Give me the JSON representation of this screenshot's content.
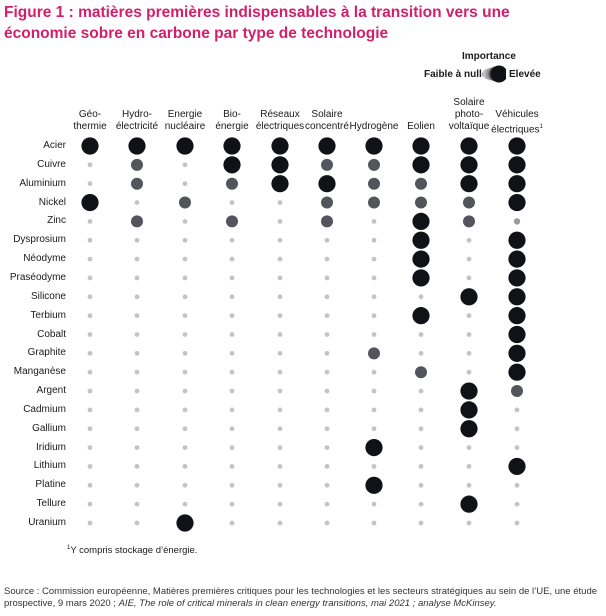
{
  "title": "Figure 1 : matières premières indispensables à la transition vers une économie sobre en carbone par type de technologie",
  "legend": {
    "title": "Importance",
    "low": "Faible à nulle",
    "high": "Elevée"
  },
  "footnote": {
    "mark": "1",
    "text": "Y compris stockage d’énergie."
  },
  "source": {
    "text": "Source : Commission européenne, Matières premières critiques pour les technologies et les secteurs stratégiques au sein de l’UE, une étude prospective, 9 mars 2020 ; ",
    "italic": "AIE, The role of critical minerals in clean energy transitions, mai 2021 ; analyse McKinsey."
  },
  "chart_data": {
    "type": "bubble-matrix",
    "scale": "0 = faible à nulle, 1 = faible, 2 = moyenne, 3 = élevée",
    "colors": {
      "0": "#c4c4c4",
      "1": "#9a9a9a",
      "2": "#54545c",
      "3": "#111118"
    },
    "columns": [
      {
        "label": "Géo-\nthermie",
        "sup": ""
      },
      {
        "label": "Hydro-\nélectricité",
        "sup": ""
      },
      {
        "label": "Energie\nnucléaire",
        "sup": ""
      },
      {
        "label": "Bio-\nénergie",
        "sup": ""
      },
      {
        "label": "Réseaux\nélectriques",
        "sup": ""
      },
      {
        "label": "Solaire\nconcentré",
        "sup": ""
      },
      {
        "label": "Hydrogène",
        "sup": ""
      },
      {
        "label": "Eolien",
        "sup": ""
      },
      {
        "label": "Solaire\nphoto-\nvoltaïque",
        "sup": ""
      },
      {
        "label": "Véhicules\nélectriques",
        "sup": "1"
      }
    ],
    "rows": [
      {
        "label": "Acier",
        "values": [
          3,
          3,
          3,
          3,
          3,
          3,
          3,
          3,
          3,
          3
        ]
      },
      {
        "label": "Cuivre",
        "values": [
          0,
          2,
          0,
          3,
          3,
          2,
          2,
          3,
          3,
          3
        ]
      },
      {
        "label": "Aluminium",
        "values": [
          0,
          2,
          0,
          2,
          3,
          3,
          2,
          2,
          3,
          3
        ]
      },
      {
        "label": "Nickel",
        "values": [
          3,
          0,
          2,
          0,
          0,
          2,
          2,
          2,
          2,
          3
        ]
      },
      {
        "label": "Zinc",
        "values": [
          0,
          2,
          0,
          2,
          0,
          2,
          0,
          3,
          2,
          1
        ]
      },
      {
        "label": "Dysprosium",
        "values": [
          0,
          0,
          0,
          0,
          0,
          0,
          0,
          3,
          0,
          3
        ]
      },
      {
        "label": "Néodyme",
        "values": [
          0,
          0,
          0,
          0,
          0,
          0,
          0,
          3,
          0,
          3
        ]
      },
      {
        "label": "Praséodyme",
        "values": [
          0,
          0,
          0,
          0,
          0,
          0,
          0,
          3,
          0,
          3
        ]
      },
      {
        "label": "Silicone",
        "values": [
          0,
          0,
          0,
          0,
          0,
          0,
          0,
          0,
          3,
          3
        ]
      },
      {
        "label": "Terbium",
        "values": [
          0,
          0,
          0,
          0,
          0,
          0,
          0,
          3,
          0,
          3
        ]
      },
      {
        "label": "Cobalt",
        "values": [
          0,
          0,
          0,
          0,
          0,
          0,
          0,
          0,
          0,
          3
        ]
      },
      {
        "label": "Graphite",
        "values": [
          0,
          0,
          0,
          0,
          0,
          0,
          2,
          0,
          0,
          3
        ]
      },
      {
        "label": "Manganèse",
        "values": [
          0,
          0,
          0,
          0,
          0,
          0,
          0,
          2,
          0,
          3
        ]
      },
      {
        "label": "Argent",
        "values": [
          0,
          0,
          0,
          0,
          0,
          0,
          0,
          0,
          3,
          2
        ]
      },
      {
        "label": "Cadmium",
        "values": [
          0,
          0,
          0,
          0,
          0,
          0,
          0,
          0,
          3,
          0
        ]
      },
      {
        "label": "Gallium",
        "values": [
          0,
          0,
          0,
          0,
          0,
          0,
          0,
          0,
          3,
          0
        ]
      },
      {
        "label": "Iridium",
        "values": [
          0,
          0,
          0,
          0,
          0,
          0,
          3,
          0,
          0,
          0
        ]
      },
      {
        "label": "Lithium",
        "values": [
          0,
          0,
          0,
          0,
          0,
          0,
          0,
          0,
          0,
          3
        ]
      },
      {
        "label": "Platine",
        "values": [
          0,
          0,
          0,
          0,
          0,
          0,
          3,
          0,
          0,
          0
        ]
      },
      {
        "label": "Tellure",
        "values": [
          0,
          0,
          0,
          0,
          0,
          0,
          0,
          0,
          3,
          0
        ]
      },
      {
        "label": "Uranium",
        "values": [
          0,
          0,
          3,
          0,
          0,
          0,
          0,
          0,
          0,
          0
        ]
      }
    ]
  }
}
